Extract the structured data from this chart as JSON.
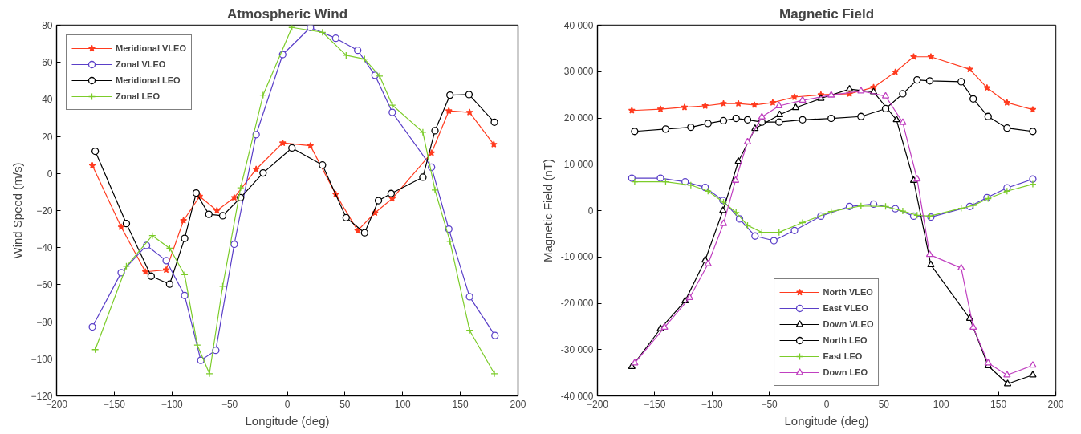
{
  "chart_data": [
    {
      "type": "line",
      "title": "Atmospheric Wind",
      "xlabel": "Longitude (deg)",
      "ylabel": "Wind Speed (m/s)",
      "xlim": [
        -200,
        200
      ],
      "ylim": [
        -120,
        80
      ],
      "xticks": [
        -200,
        -150,
        -100,
        -50,
        0,
        50,
        100,
        150,
        200
      ],
      "yticks": [
        -120,
        -100,
        -80,
        -60,
        -40,
        -20,
        0,
        20,
        40,
        60,
        80
      ],
      "grid": false,
      "legend": "top left",
      "series": [
        {
          "name": "Meridional VLEO",
          "color": "#ff3b1f",
          "marker": "star",
          "x": [
            -169,
            -144,
            -123,
            -105,
            -90,
            -76,
            -61,
            -46,
            -27,
            -4,
            20,
            42,
            61,
            76,
            91,
            125,
            140,
            158,
            179
          ],
          "values": [
            4.3,
            -28.9,
            -53,
            -52,
            -25.4,
            -12.3,
            -20,
            -13,
            2.3,
            16.5,
            15,
            -11.2,
            -30.8,
            -21.2,
            -13.5,
            11.1,
            33.8,
            33,
            15.7
          ]
        },
        {
          "name": "Zonal VLEO",
          "color": "#5a3fc8",
          "marker": "circle",
          "x": [
            -169,
            -144,
            -122,
            -105,
            -89,
            -75,
            -62,
            -46,
            -27,
            -4,
            20,
            42,
            61,
            76,
            91,
            125,
            140,
            158,
            180
          ],
          "values": [
            -82.8,
            -53.5,
            -38.8,
            -47,
            -65.8,
            -100.8,
            -95.4,
            -38.2,
            21,
            64.2,
            78.8,
            73,
            66.5,
            53,
            33,
            3.4,
            -30,
            -66.5,
            -87.4
          ]
        },
        {
          "name": "Meridional LEO",
          "color": "#000000",
          "marker": "circle",
          "x": [
            -166.5,
            -139.5,
            -118,
            -102,
            -89,
            -79,
            -68,
            -56,
            -40.5,
            -21,
            4,
            30.5,
            51,
            67,
            79,
            90,
            117.5,
            128,
            141,
            157.5,
            179.5
          ],
          "values": [
            12,
            -27,
            -55.4,
            -59.7,
            -35,
            -10.5,
            -22,
            -22.8,
            -13,
            0.3,
            13.8,
            4.6,
            -23.8,
            -32,
            -14.6,
            -10.8,
            -2,
            23.1,
            42.3,
            42.6,
            27.7
          ]
        },
        {
          "name": "Zonal LEO",
          "color": "#7ccc2a",
          "marker": "cross",
          "x": [
            -166.5,
            -139.5,
            -117,
            -102,
            -89,
            -78,
            -67.5,
            -56,
            -40.5,
            -21,
            4,
            30.5,
            51,
            67,
            80,
            91,
            117.5,
            128,
            141,
            158,
            179.5
          ],
          "values": [
            -95,
            -50,
            -33.5,
            -40.3,
            -54.6,
            -92.6,
            -108,
            -60.8,
            -7.7,
            42.3,
            78.8,
            76.2,
            63.8,
            61.8,
            52.6,
            36.9,
            22.3,
            -8.9,
            -36.6,
            -84.6,
            -108
          ]
        }
      ]
    },
    {
      "type": "line",
      "title": "Magnetic Field",
      "xlabel": "Longitude (deg)",
      "ylabel": "Magnetic Field (nT)",
      "xlim": [
        -200,
        200
      ],
      "ylim": [
        -40000,
        40000
      ],
      "xticks": [
        -200,
        -150,
        -100,
        -50,
        0,
        50,
        100,
        150,
        200
      ],
      "yticks": [
        {
          "value": -40000,
          "label": "-40 000"
        },
        {
          "value": -30000,
          "label": "-30 000"
        },
        {
          "value": -20000,
          "label": "-20 000"
        },
        {
          "value": -10000,
          "label": "-10 000"
        },
        0,
        {
          "value": 10000,
          "label": "10 000"
        },
        {
          "value": 20000,
          "label": "20 000"
        },
        {
          "value": 30000,
          "label": "30 000"
        },
        {
          "value": 40000,
          "label": "40 000"
        }
      ],
      "grid": false,
      "legend": "bottom",
      "series": [
        {
          "name": "North VLEO",
          "color": "#ff3b1f",
          "marker": "star",
          "x": [
            -170,
            -145,
            -124,
            -106,
            -90,
            -77,
            -63,
            -47,
            -28,
            -5,
            20,
            41,
            60,
            76,
            91,
            125,
            140,
            157.5,
            180
          ],
          "values": [
            21600,
            21900,
            22300,
            22600,
            23100,
            23100,
            22800,
            23300,
            24500,
            25000,
            25200,
            26600,
            29900,
            33200,
            33200,
            30500,
            26500,
            23300,
            21800
          ]
        },
        {
          "name": "East VLEO",
          "color": "#5a3fc8",
          "marker": "circle",
          "x": [
            -170,
            -145,
            -123.5,
            -106,
            -90.5,
            -76,
            -62.5,
            -46,
            -28,
            -5,
            20,
            41,
            60,
            76,
            91,
            125,
            140,
            157.5,
            180
          ],
          "values": [
            7000,
            7000,
            6200,
            5000,
            2200,
            -1800,
            -5500,
            -6500,
            -4300,
            -1200,
            900,
            1400,
            400,
            -1200,
            -1400,
            900,
            2800,
            4900,
            6800
          ]
        },
        {
          "name": "Down VLEO",
          "color": "#000000",
          "marker": "triangle",
          "x": [
            -170,
            -145,
            -123.5,
            -106,
            -90.5,
            -77,
            -62.5,
            -41,
            -27,
            -5,
            20,
            41,
            61,
            76,
            91,
            125,
            141,
            158,
            180
          ],
          "values": [
            -33700,
            -25500,
            -19500,
            -10700,
            0,
            10600,
            17700,
            20700,
            22200,
            24200,
            26200,
            25600,
            19600,
            6500,
            -11700,
            -23300,
            -33500,
            -37400,
            -35500
          ]
        },
        {
          "name": "North LEO",
          "color": "#000000",
          "marker": "circle",
          "x": [
            -167.5,
            -140.5,
            -118.5,
            -103.5,
            -90,
            -79,
            -69,
            -56.5,
            -41.5,
            -21,
            4,
            30,
            51.5,
            66.5,
            79,
            90,
            117.5,
            128,
            141,
            157.5,
            180
          ],
          "values": [
            17100,
            17600,
            18000,
            18800,
            19400,
            19900,
            19600,
            19100,
            19100,
            19600,
            19900,
            20300,
            22000,
            25200,
            28200,
            28000,
            27800,
            24100,
            20300,
            17800,
            17100
          ]
        },
        {
          "name": "East LEO",
          "color": "#7ccc2a",
          "marker": "cross",
          "x": [
            -167.5,
            -140.5,
            -118.5,
            -103.5,
            -90,
            -79,
            -69,
            -56.5,
            -41.5,
            -21,
            4,
            30,
            51.5,
            66.5,
            79,
            90,
            117.5,
            128,
            141,
            157.5,
            180
          ],
          "values": [
            6200,
            6200,
            5500,
            4200,
            1800,
            -400,
            -3200,
            -4700,
            -4700,
            -2600,
            -200,
            1000,
            900,
            -100,
            -1000,
            -1200,
            500,
            1100,
            2600,
            4200,
            5700
          ]
        },
        {
          "name": "Down LEO",
          "color": "#c040c0",
          "marker": "triangle",
          "x": [
            -167.5,
            -141.5,
            -119.5,
            -103.5,
            -90,
            -79.5,
            -69,
            -56.5,
            -41.5,
            -21,
            4,
            30,
            51.5,
            66.5,
            79,
            90,
            117.5,
            128,
            141,
            157.5,
            180
          ],
          "values": [
            -32900,
            -25200,
            -18800,
            -11500,
            -2800,
            6500,
            14800,
            20200,
            22600,
            23800,
            24900,
            25800,
            24700,
            19000,
            6800,
            -9500,
            -12400,
            -25200,
            -32900,
            -35500,
            -33400
          ]
        }
      ]
    }
  ]
}
